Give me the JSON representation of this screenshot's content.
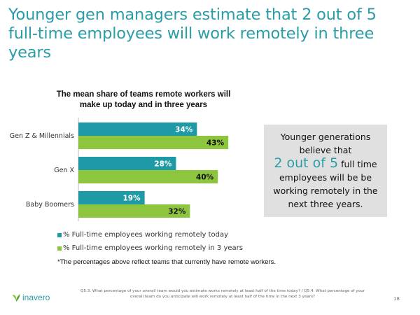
{
  "headline": {
    "line1": "Younger gen managers estimate that 2 out of 5",
    "line2": "full-time employees will work remotely in three years"
  },
  "chart_data": {
    "type": "bar",
    "orientation": "horizontal",
    "title_line1": "The mean share of teams remote workers will",
    "title_line2": "make up today and in three years",
    "categories": [
      "Gen Z & Millennials",
      "Gen X",
      "Baby Boomers"
    ],
    "series": [
      {
        "name": "% Full-time employees working remotely today",
        "values": [
          34,
          28,
          19
        ],
        "color": "#1d9aa6"
      },
      {
        "name": "% Full-time employees working remotely in 3 years",
        "values": [
          43,
          40,
          32
        ],
        "color": "#8ec53f"
      }
    ],
    "value_suffix": "%",
    "xlim": [
      0,
      50
    ],
    "grid": false,
    "legend_position": "bottom"
  },
  "footnote": "*The percentages above reflect teams that currently have remote workers.",
  "callout": {
    "line1": "Younger generations",
    "line2": "believe that",
    "emphasis": "2 out of 5",
    "line3_rest": "full time",
    "line4": "employees will be be",
    "line5": "working remotely in the",
    "line6": "next three years."
  },
  "footer": {
    "logo_text": "inavero",
    "source_line1": "Q5.3. What percentage of your overall team would you estimate works remotely at least half of the time today? / Q5.4. What percentage of your",
    "source_line2": "overall team do you anticipate will work remotely at least half of the time in the next 3 years?",
    "page_number": "18"
  },
  "colors": {
    "accent": "#2a9da6",
    "teal": "#1d9aa6",
    "green": "#8ec53f",
    "callout_bg": "#e0e0e0"
  }
}
